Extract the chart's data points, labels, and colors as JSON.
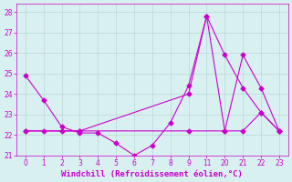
{
  "xlabel": "Windchill (Refroidissement éolien,°C)",
  "bg_color": "#d8f0f0",
  "grid_color": "#b8d8d8",
  "line_color": "#cc00cc",
  "ylim": [
    21,
    28.4
  ],
  "yticks": [
    21,
    22,
    23,
    24,
    25,
    26,
    27,
    28
  ],
  "xtick_labels": [
    "0",
    "1",
    "2",
    "3",
    "4",
    "5",
    "6",
    "7",
    "8",
    "9",
    "11",
    "20",
    "21",
    "22",
    "23"
  ],
  "series1_pos": [
    0,
    1,
    2,
    3,
    4,
    5,
    6,
    7,
    8,
    9,
    10,
    11,
    12,
    13,
    14
  ],
  "series1_y": [
    24.9,
    23.7,
    22.4,
    22.1,
    22.1,
    21.6,
    21.0,
    21.5,
    22.6,
    24.4,
    27.8,
    22.2,
    22.2,
    23.1,
    22.2
  ],
  "series2_pos": [
    0,
    1,
    2,
    3,
    9,
    11,
    12,
    13,
    14
  ],
  "series2_y": [
    22.2,
    22.2,
    22.2,
    22.2,
    22.2,
    22.2,
    25.9,
    24.3,
    22.2
  ],
  "series3_pos": [
    0,
    3,
    9,
    10,
    11,
    12,
    13,
    14
  ],
  "series3_y": [
    22.2,
    22.2,
    24.0,
    27.8,
    25.9,
    24.3,
    23.1,
    22.2
  ],
  "marker_size": 2.5,
  "line_width": 0.8,
  "xlabel_fontsize": 6.5,
  "tick_fontsize": 5.5
}
